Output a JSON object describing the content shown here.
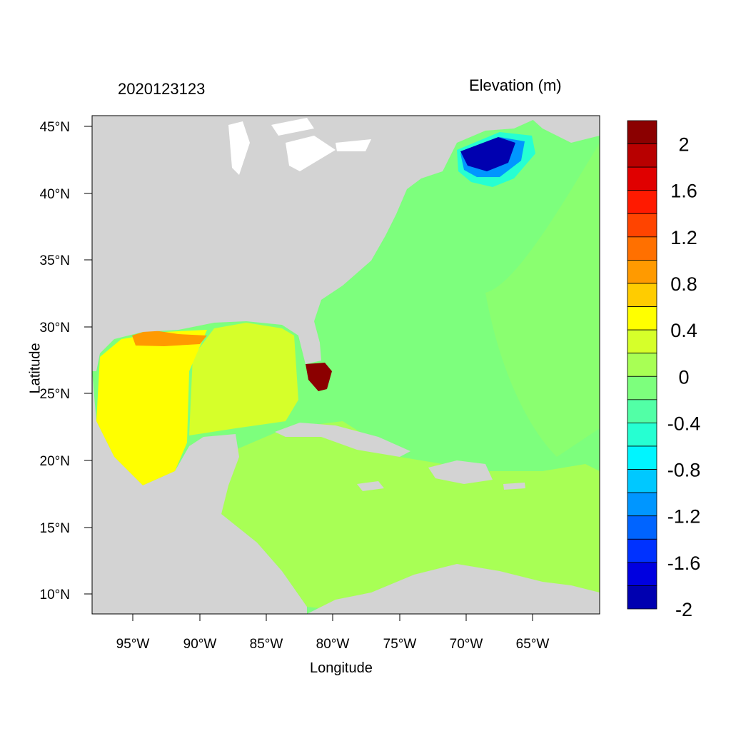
{
  "map": {
    "date_label": "2020123123",
    "variable_label": "Elevation (m)",
    "xlabel": "Longitude",
    "ylabel": "Latitude",
    "lon_ticks": [
      "95°W",
      "90°W",
      "85°W",
      "80°W",
      "75°W",
      "70°W",
      "65°W"
    ],
    "lat_ticks": [
      "45°N",
      "40°N",
      "35°N",
      "30°N",
      "25°N",
      "20°N",
      "15°N",
      "10°N"
    ],
    "land_color": "#d3d3d3"
  },
  "colorbar": {
    "labels": [
      "2",
      "1.6",
      "1.2",
      "0.8",
      "0.4",
      "0",
      "-0.4",
      "-0.8",
      "-1.2",
      "-1.6",
      "-2"
    ],
    "colors": [
      "#8b0000",
      "#b80000",
      "#e00000",
      "#ff1a00",
      "#ff4400",
      "#ff7000",
      "#ff9a00",
      "#ffcc00",
      "#ffff00",
      "#d6ff2a",
      "#a8ff55",
      "#7dff7d",
      "#52ffa6",
      "#26ffd2",
      "#00f5ff",
      "#00c8ff",
      "#0096ff",
      "#0064ff",
      "#0032ff",
      "#0000e0",
      "#0000b0"
    ]
  }
}
